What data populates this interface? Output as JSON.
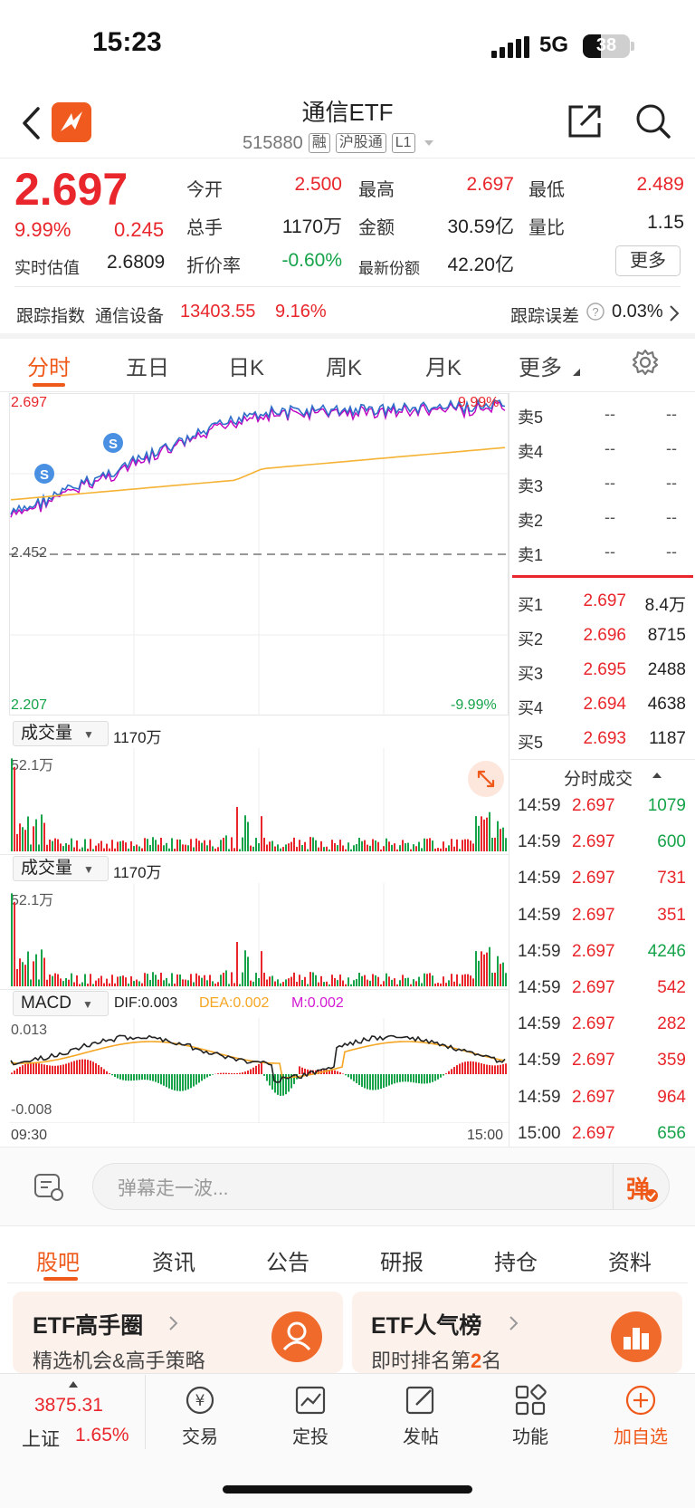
{
  "status": {
    "time": "15:23",
    "network": "5G",
    "battery": "38"
  },
  "header": {
    "title": "通信ETF",
    "code": "515880",
    "tags": [
      "融",
      "沪股通",
      "L1"
    ]
  },
  "quote": {
    "price": "2.697",
    "change_pct": "9.99%",
    "change": "0.245",
    "estimate_label": "实时估值",
    "estimate_value": "2.6809",
    "fields": [
      {
        "label": "今开",
        "value": "2.500",
        "color": "red"
      },
      {
        "label": "最高",
        "value": "2.697",
        "color": "red"
      },
      {
        "label": "最低",
        "value": "2.489",
        "color": "red"
      },
      {
        "label": "总手",
        "value": "1170万",
        "color": "black"
      },
      {
        "label": "金额",
        "value": "30.59亿",
        "color": "black"
      },
      {
        "label": "量比",
        "value": "1.15",
        "color": "black"
      },
      {
        "label": "折价率",
        "value": "-0.60%",
        "color": "green"
      },
      {
        "label": "最新份额",
        "value": "42.20亿",
        "color": "black"
      }
    ],
    "more_label": "更多",
    "track_label": "跟踪指数",
    "track_name": "通信设备",
    "track_value": "13403.55",
    "track_pct": "9.16%",
    "track_error_label": "跟踪误差",
    "track_error_value": "0.03%"
  },
  "chart_tabs": [
    "分时",
    "五日",
    "日K",
    "周K",
    "月K",
    "更多"
  ],
  "chart": {
    "top_price": "2.697",
    "top_pct": "9.99%",
    "mid_price": "2.452",
    "bottom_price": "2.207",
    "bottom_pct": "-9.99%",
    "volume_label": "成交量",
    "volume_total": "1170万",
    "volume_max": "52.1万",
    "macd_label": "MACD",
    "dif": "DIF:0.003",
    "dea": "DEA:0.002",
    "m": "M:0.002",
    "macd_top": "0.013",
    "macd_bottom": "-0.008",
    "time_start": "09:30",
    "time_end": "15:00",
    "marker": "S"
  },
  "order_book": {
    "sells": [
      {
        "label": "卖5",
        "price": "--",
        "vol": "--"
      },
      {
        "label": "卖4",
        "price": "--",
        "vol": "--"
      },
      {
        "label": "卖3",
        "price": "--",
        "vol": "--"
      },
      {
        "label": "卖2",
        "price": "--",
        "vol": "--"
      },
      {
        "label": "卖1",
        "price": "--",
        "vol": "--"
      }
    ],
    "buys": [
      {
        "label": "买1",
        "price": "2.697",
        "vol": "8.4万"
      },
      {
        "label": "买2",
        "price": "2.696",
        "vol": "8715"
      },
      {
        "label": "买3",
        "price": "2.695",
        "vol": "2488"
      },
      {
        "label": "买4",
        "price": "2.694",
        "vol": "4638"
      },
      {
        "label": "买5",
        "price": "2.693",
        "vol": "1187"
      }
    ]
  },
  "trades_title": "分时成交",
  "trades": [
    {
      "time": "14:59",
      "price": "2.697",
      "vol": "1079",
      "color": "green"
    },
    {
      "time": "14:59",
      "price": "2.697",
      "vol": "600",
      "color": "green"
    },
    {
      "time": "14:59",
      "price": "2.697",
      "vol": "731",
      "color": "red"
    },
    {
      "time": "14:59",
      "price": "2.697",
      "vol": "351",
      "color": "red"
    },
    {
      "time": "14:59",
      "price": "2.697",
      "vol": "4246",
      "color": "green"
    },
    {
      "time": "14:59",
      "price": "2.697",
      "vol": "542",
      "color": "red"
    },
    {
      "time": "14:59",
      "price": "2.697",
      "vol": "282",
      "color": "red"
    },
    {
      "time": "14:59",
      "price": "2.697",
      "vol": "359",
      "color": "red"
    },
    {
      "time": "14:59",
      "price": "2.697",
      "vol": "964",
      "color": "red"
    },
    {
      "time": "15:00",
      "price": "2.697",
      "vol": "656",
      "color": "green"
    }
  ],
  "danmu": {
    "placeholder": "弹幕走一波...",
    "button": "弹"
  },
  "section_tabs": [
    "股吧",
    "资讯",
    "公告",
    "研报",
    "持仓",
    "资料"
  ],
  "cards": [
    {
      "title": "ETF高手圈",
      "subtitle": "精选机会&高手策略"
    },
    {
      "title": "ETF人气榜",
      "subtitle_pre": "即时排名第",
      "subtitle_num": "2",
      "subtitle_post": "名"
    }
  ],
  "bottom_nav": {
    "index_value": "3875.31",
    "index_name": "上证",
    "index_pct": "1.65%",
    "items": [
      "交易",
      "定投",
      "发帖",
      "功能",
      "加自选"
    ]
  },
  "colors": {
    "up": "#e8262b",
    "down": "#16a34a",
    "accent": "#ef5a1b",
    "price_line": "#2f6fc9",
    "avg_line": "#f5b335"
  }
}
